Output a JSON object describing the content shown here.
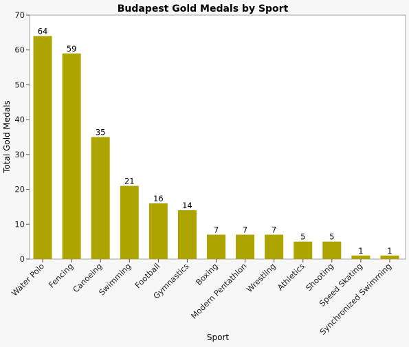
{
  "chart_data": {
    "type": "bar",
    "title": "Budapest Gold Medals by Sport",
    "xlabel": "Sport",
    "ylabel": "Total Gold Medals",
    "ylim": [
      0,
      70
    ],
    "yticks": [
      0,
      10,
      20,
      30,
      40,
      50,
      60,
      70
    ],
    "grid": false,
    "bar_color": "#aea400",
    "categories": [
      "Water Polo",
      "Fencing",
      "Canoeing",
      "Swimming",
      "Football",
      "Gymnastics",
      "Boxing",
      "Modern Pentathlon",
      "Wrestling",
      "Athletics",
      "Shooting",
      "Speed Skating",
      "Synchronized Swimming"
    ],
    "values": [
      64,
      59,
      35,
      21,
      16,
      14,
      7,
      7,
      7,
      5,
      5,
      1,
      1
    ]
  }
}
